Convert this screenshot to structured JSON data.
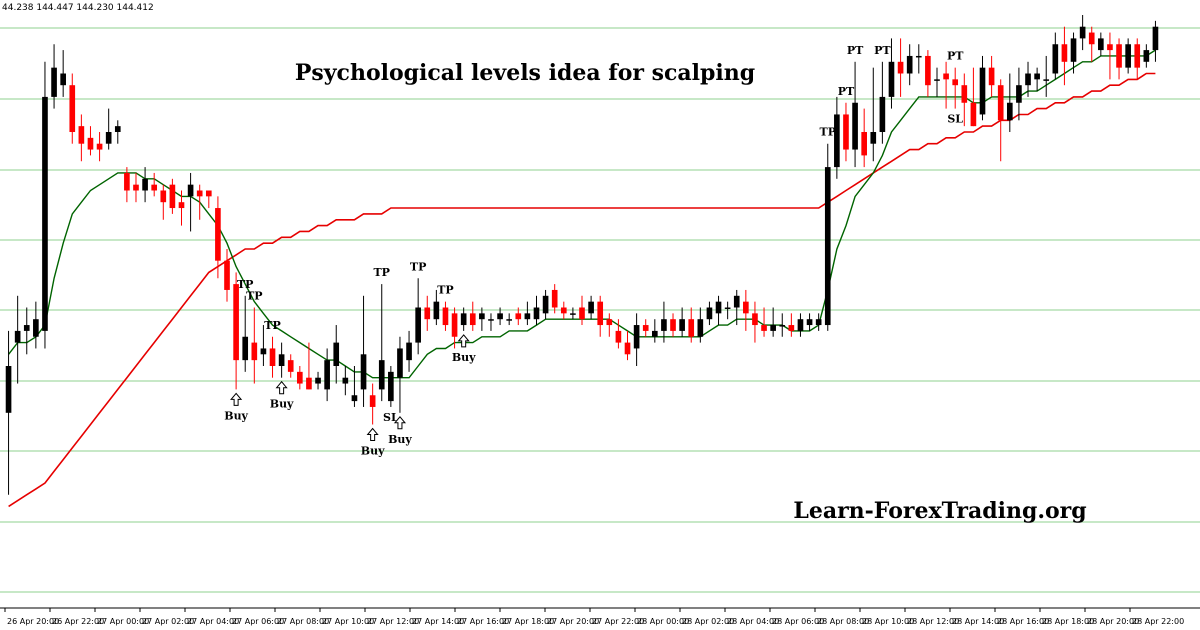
{
  "ohlc_readout": "44.238 144.447 144.230 144.412",
  "colors": {
    "background": "#ffffff",
    "grid": "#8fd08f",
    "bull_candle": "#000000",
    "bear_candle": "#ff0000",
    "ema_fast": "#006400",
    "ema_slow": "#e60000",
    "buy_arrow": "#000000"
  },
  "chart_data": {
    "type": "candlestick",
    "title": "Psychological levels idea for scalping",
    "watermark": "Learn-ForexTrading.org",
    "x_tick_labels": [
      "26 Apr 20:00",
      "26 Apr 22:00",
      "27 Apr 00:00",
      "27 Apr 02:00",
      "27 Apr 04:00",
      "27 Apr 06:00",
      "27 Apr 08:00",
      "27 Apr 10:00",
      "27 Apr 12:00",
      "27 Apr 14:00",
      "27 Apr 16:00",
      "27 Apr 18:00",
      "27 Apr 20:00",
      "27 Apr 22:00",
      "28 Apr 00:00",
      "28 Apr 02:00",
      "28 Apr 04:00",
      "28 Apr 06:00",
      "28 Apr 08:00",
      "28 Apr 10:00",
      "28 Apr 12:00",
      "28 Apr 14:00",
      "28 Apr 16:00",
      "28 Apr 18:00",
      "28 Apr 20:00",
      "28 Apr 22:00"
    ],
    "grid": true,
    "candles": [
      [
        0.32,
        0.4,
        0.18,
        0.46
      ],
      [
        0.44,
        0.46,
        0.37,
        0.52
      ],
      [
        0.46,
        0.47,
        0.42,
        0.5
      ],
      [
        0.45,
        0.48,
        0.43,
        0.51
      ],
      [
        0.46,
        0.86,
        0.43,
        0.92
      ],
      [
        0.86,
        0.91,
        0.84,
        0.95
      ],
      [
        0.88,
        0.9,
        0.86,
        0.94
      ],
      [
        0.88,
        0.8,
        0.78,
        0.9
      ],
      [
        0.81,
        0.78,
        0.75,
        0.83
      ],
      [
        0.79,
        0.77,
        0.76,
        0.81
      ],
      [
        0.78,
        0.77,
        0.75,
        0.8
      ],
      [
        0.78,
        0.8,
        0.77,
        0.84
      ],
      [
        0.8,
        0.81,
        0.78,
        0.82
      ],
      [
        0.73,
        0.7,
        0.68,
        0.74
      ],
      [
        0.71,
        0.7,
        0.68,
        0.73
      ],
      [
        0.7,
        0.72,
        0.68,
        0.74
      ],
      [
        0.71,
        0.7,
        0.69,
        0.73
      ],
      [
        0.7,
        0.68,
        0.65,
        0.71
      ],
      [
        0.71,
        0.67,
        0.66,
        0.72
      ],
      [
        0.68,
        0.67,
        0.64,
        0.7
      ],
      [
        0.69,
        0.71,
        0.63,
        0.73
      ],
      [
        0.7,
        0.69,
        0.65,
        0.71
      ],
      [
        0.7,
        0.69,
        0.67,
        0.7
      ],
      [
        0.67,
        0.58,
        0.55,
        0.69
      ],
      [
        0.58,
        0.53,
        0.51,
        0.6
      ],
      [
        0.54,
        0.41,
        0.36,
        0.56
      ],
      [
        0.41,
        0.45,
        0.39,
        0.52
      ],
      [
        0.44,
        0.41,
        0.37,
        0.5
      ],
      [
        0.42,
        0.43,
        0.4,
        0.47
      ],
      [
        0.43,
        0.4,
        0.38,
        0.45
      ],
      [
        0.4,
        0.42,
        0.38,
        0.44
      ],
      [
        0.41,
        0.39,
        0.38,
        0.42
      ],
      [
        0.39,
        0.37,
        0.36,
        0.4
      ],
      [
        0.38,
        0.36,
        0.36,
        0.44
      ],
      [
        0.37,
        0.38,
        0.36,
        0.39
      ],
      [
        0.36,
        0.41,
        0.34,
        0.43
      ],
      [
        0.4,
        0.44,
        0.37,
        0.47
      ],
      [
        0.37,
        0.38,
        0.35,
        0.4
      ],
      [
        0.34,
        0.35,
        0.33,
        0.4
      ],
      [
        0.36,
        0.42,
        0.33,
        0.52
      ],
      [
        0.35,
        0.33,
        0.3,
        0.37
      ],
      [
        0.36,
        0.41,
        0.34,
        0.54
      ],
      [
        0.34,
        0.39,
        0.33,
        0.4
      ],
      [
        0.38,
        0.43,
        0.32,
        0.45
      ],
      [
        0.41,
        0.44,
        0.39,
        0.46
      ],
      [
        0.44,
        0.5,
        0.42,
        0.55
      ],
      [
        0.5,
        0.48,
        0.46,
        0.52
      ],
      [
        0.48,
        0.51,
        0.47,
        0.53
      ],
      [
        0.5,
        0.47,
        0.46,
        0.51
      ],
      [
        0.49,
        0.45,
        0.43,
        0.5
      ],
      [
        0.47,
        0.49,
        0.46,
        0.5
      ],
      [
        0.49,
        0.47,
        0.46,
        0.51
      ],
      [
        0.48,
        0.49,
        0.46,
        0.5
      ],
      [
        0.48,
        0.48,
        0.46,
        0.49
      ],
      [
        0.48,
        0.49,
        0.47,
        0.5
      ],
      [
        0.48,
        0.48,
        0.47,
        0.49
      ],
      [
        0.49,
        0.48,
        0.47,
        0.5
      ],
      [
        0.48,
        0.49,
        0.47,
        0.51
      ],
      [
        0.48,
        0.5,
        0.47,
        0.52
      ],
      [
        0.49,
        0.52,
        0.48,
        0.53
      ],
      [
        0.53,
        0.5,
        0.49,
        0.54
      ],
      [
        0.5,
        0.49,
        0.48,
        0.51
      ],
      [
        0.49,
        0.49,
        0.48,
        0.5
      ],
      [
        0.5,
        0.48,
        0.47,
        0.52
      ],
      [
        0.49,
        0.51,
        0.48,
        0.52
      ],
      [
        0.51,
        0.47,
        0.45,
        0.52
      ],
      [
        0.48,
        0.47,
        0.45,
        0.49
      ],
      [
        0.46,
        0.44,
        0.43,
        0.48
      ],
      [
        0.44,
        0.42,
        0.41,
        0.46
      ],
      [
        0.43,
        0.47,
        0.4,
        0.49
      ],
      [
        0.47,
        0.46,
        0.45,
        0.48
      ],
      [
        0.45,
        0.46,
        0.44,
        0.48
      ],
      [
        0.46,
        0.48,
        0.44,
        0.51
      ],
      [
        0.48,
        0.46,
        0.45,
        0.49
      ],
      [
        0.46,
        0.48,
        0.45,
        0.5
      ],
      [
        0.48,
        0.45,
        0.44,
        0.5
      ],
      [
        0.45,
        0.48,
        0.44,
        0.5
      ],
      [
        0.48,
        0.5,
        0.47,
        0.51
      ],
      [
        0.49,
        0.51,
        0.47,
        0.52
      ],
      [
        0.5,
        0.5,
        0.48,
        0.51
      ],
      [
        0.5,
        0.52,
        0.47,
        0.53
      ],
      [
        0.51,
        0.49,
        0.46,
        0.53
      ],
      [
        0.49,
        0.47,
        0.44,
        0.51
      ],
      [
        0.47,
        0.46,
        0.45,
        0.5
      ],
      [
        0.46,
        0.47,
        0.45,
        0.5
      ],
      [
        0.47,
        0.47,
        0.45,
        0.49
      ],
      [
        0.47,
        0.46,
        0.45,
        0.49
      ],
      [
        0.46,
        0.48,
        0.45,
        0.49
      ],
      [
        0.47,
        0.48,
        0.46,
        0.49
      ],
      [
        0.47,
        0.48,
        0.46,
        0.49
      ],
      [
        0.47,
        0.74,
        0.46,
        0.78
      ],
      [
        0.74,
        0.83,
        0.72,
        0.86
      ],
      [
        0.83,
        0.77,
        0.75,
        0.85
      ],
      [
        0.77,
        0.85,
        0.74,
        0.92
      ],
      [
        0.8,
        0.76,
        0.74,
        0.84
      ],
      [
        0.78,
        0.8,
        0.75,
        0.91
      ],
      [
        0.8,
        0.86,
        0.78,
        0.92
      ],
      [
        0.86,
        0.92,
        0.84,
        0.96
      ],
      [
        0.92,
        0.9,
        0.86,
        0.96
      ],
      [
        0.9,
        0.93,
        0.88,
        0.95
      ],
      [
        0.93,
        0.93,
        0.9,
        0.95
      ],
      [
        0.93,
        0.88,
        0.86,
        0.94
      ],
      [
        0.89,
        0.89,
        0.86,
        0.91
      ],
      [
        0.9,
        0.89,
        0.84,
        0.92
      ],
      [
        0.89,
        0.88,
        0.84,
        0.91
      ],
      [
        0.88,
        0.85,
        0.81,
        0.9
      ],
      [
        0.85,
        0.81,
        0.81,
        0.91
      ],
      [
        0.83,
        0.91,
        0.82,
        0.93
      ],
      [
        0.91,
        0.88,
        0.86,
        0.93
      ],
      [
        0.88,
        0.82,
        0.75,
        0.89
      ],
      [
        0.82,
        0.85,
        0.8,
        0.9
      ],
      [
        0.85,
        0.88,
        0.82,
        0.91
      ],
      [
        0.88,
        0.9,
        0.86,
        0.92
      ],
      [
        0.89,
        0.9,
        0.87,
        0.91
      ],
      [
        0.89,
        0.89,
        0.86,
        0.93
      ],
      [
        0.9,
        0.95,
        0.89,
        0.97
      ],
      [
        0.95,
        0.92,
        0.88,
        0.98
      ],
      [
        0.92,
        0.96,
        0.9,
        0.97
      ],
      [
        0.96,
        0.98,
        0.94,
        1.0
      ],
      [
        0.97,
        0.95,
        0.92,
        0.98
      ],
      [
        0.94,
        0.96,
        0.93,
        0.97
      ],
      [
        0.95,
        0.94,
        0.89,
        0.97
      ],
      [
        0.95,
        0.91,
        0.89,
        0.96
      ],
      [
        0.91,
        0.95,
        0.9,
        0.96
      ],
      [
        0.95,
        0.91,
        0.89,
        0.96
      ],
      [
        0.92,
        0.94,
        0.91,
        0.95
      ],
      [
        0.94,
        0.98,
        0.92,
        0.99
      ]
    ],
    "ema_fast": [
      0.42,
      0.44,
      0.44,
      0.45,
      0.47,
      0.55,
      0.61,
      0.66,
      0.68,
      0.7,
      0.71,
      0.72,
      0.73,
      0.73,
      0.73,
      0.72,
      0.72,
      0.71,
      0.7,
      0.69,
      0.69,
      0.68,
      0.66,
      0.64,
      0.61,
      0.57,
      0.54,
      0.51,
      0.49,
      0.47,
      0.46,
      0.45,
      0.44,
      0.43,
      0.42,
      0.41,
      0.41,
      0.4,
      0.39,
      0.39,
      0.38,
      0.38,
      0.38,
      0.38,
      0.38,
      0.4,
      0.42,
      0.43,
      0.43,
      0.44,
      0.44,
      0.44,
      0.45,
      0.45,
      0.45,
      0.46,
      0.46,
      0.46,
      0.47,
      0.48,
      0.48,
      0.48,
      0.48,
      0.48,
      0.48,
      0.48,
      0.48,
      0.47,
      0.46,
      0.45,
      0.45,
      0.45,
      0.45,
      0.45,
      0.45,
      0.45,
      0.45,
      0.46,
      0.47,
      0.47,
      0.48,
      0.48,
      0.48,
      0.47,
      0.47,
      0.47,
      0.46,
      0.46,
      0.46,
      0.47,
      0.53,
      0.6,
      0.64,
      0.69,
      0.71,
      0.73,
      0.76,
      0.8,
      0.82,
      0.84,
      0.86,
      0.86,
      0.86,
      0.86,
      0.86,
      0.86,
      0.85,
      0.85,
      0.86,
      0.86,
      0.86,
      0.86,
      0.87,
      0.87,
      0.88,
      0.89,
      0.9,
      0.91,
      0.92,
      0.92,
      0.93,
      0.93,
      0.93,
      0.93,
      0.93,
      0.93,
      0.94
    ],
    "ema_slow": [
      0.16,
      0.17,
      0.18,
      0.19,
      0.2,
      0.22,
      0.24,
      0.26,
      0.28,
      0.3,
      0.32,
      0.34,
      0.36,
      0.38,
      0.4,
      0.42,
      0.44,
      0.46,
      0.48,
      0.5,
      0.52,
      0.54,
      0.56,
      0.57,
      0.58,
      0.59,
      0.6,
      0.6,
      0.61,
      0.61,
      0.62,
      0.62,
      0.63,
      0.63,
      0.64,
      0.64,
      0.65,
      0.65,
      0.65,
      0.66,
      0.66,
      0.66,
      0.67,
      0.67,
      0.67,
      0.67,
      0.67,
      0.67,
      0.67,
      0.67,
      0.67,
      0.67,
      0.67,
      0.67,
      0.67,
      0.67,
      0.67,
      0.67,
      0.67,
      0.67,
      0.67,
      0.67,
      0.67,
      0.67,
      0.67,
      0.67,
      0.67,
      0.67,
      0.67,
      0.67,
      0.67,
      0.67,
      0.67,
      0.67,
      0.67,
      0.67,
      0.67,
      0.67,
      0.67,
      0.67,
      0.67,
      0.67,
      0.67,
      0.67,
      0.67,
      0.67,
      0.67,
      0.67,
      0.67,
      0.67,
      0.68,
      0.69,
      0.7,
      0.71,
      0.72,
      0.73,
      0.74,
      0.75,
      0.76,
      0.77,
      0.77,
      0.78,
      0.78,
      0.79,
      0.79,
      0.8,
      0.8,
      0.81,
      0.81,
      0.82,
      0.82,
      0.83,
      0.83,
      0.84,
      0.84,
      0.85,
      0.85,
      0.86,
      0.86,
      0.87,
      0.87,
      0.88,
      0.88,
      0.89,
      0.89,
      0.9,
      0.9
    ],
    "annotations": [
      {
        "label": "TP",
        "candle": 27,
        "side": "above"
      },
      {
        "label": "Buy",
        "candle": 25,
        "side": "below",
        "arrow": true
      },
      {
        "label": "TP",
        "candle": 26,
        "side": "above"
      },
      {
        "label": "TP",
        "candle": 29,
        "side": "above"
      },
      {
        "label": "Buy",
        "candle": 30,
        "side": "below",
        "arrow": true
      },
      {
        "label": "TP",
        "candle": 41,
        "side": "above"
      },
      {
        "label": "TP",
        "candle": 45,
        "side": "above"
      },
      {
        "label": "Buy",
        "candle": 40,
        "side": "below",
        "arrow": true
      },
      {
        "label": "SL",
        "candle": 42,
        "side": "below"
      },
      {
        "label": "Buy",
        "candle": 43,
        "side": "below",
        "arrow": true
      },
      {
        "label": "TP",
        "candle": 48,
        "side": "above"
      },
      {
        "label": "Buy",
        "candle": 50,
        "side": "below",
        "arrow": true
      },
      {
        "label": "TP",
        "candle": 90,
        "side": "above"
      },
      {
        "label": "PT",
        "candle": 92,
        "side": "above"
      },
      {
        "label": "PT",
        "candle": 93,
        "side": "above"
      },
      {
        "label": "PT",
        "candle": 96,
        "side": "above"
      },
      {
        "label": "PT",
        "candle": 104,
        "side": "above"
      },
      {
        "label": "SL",
        "candle": 104,
        "side": "below"
      }
    ]
  }
}
